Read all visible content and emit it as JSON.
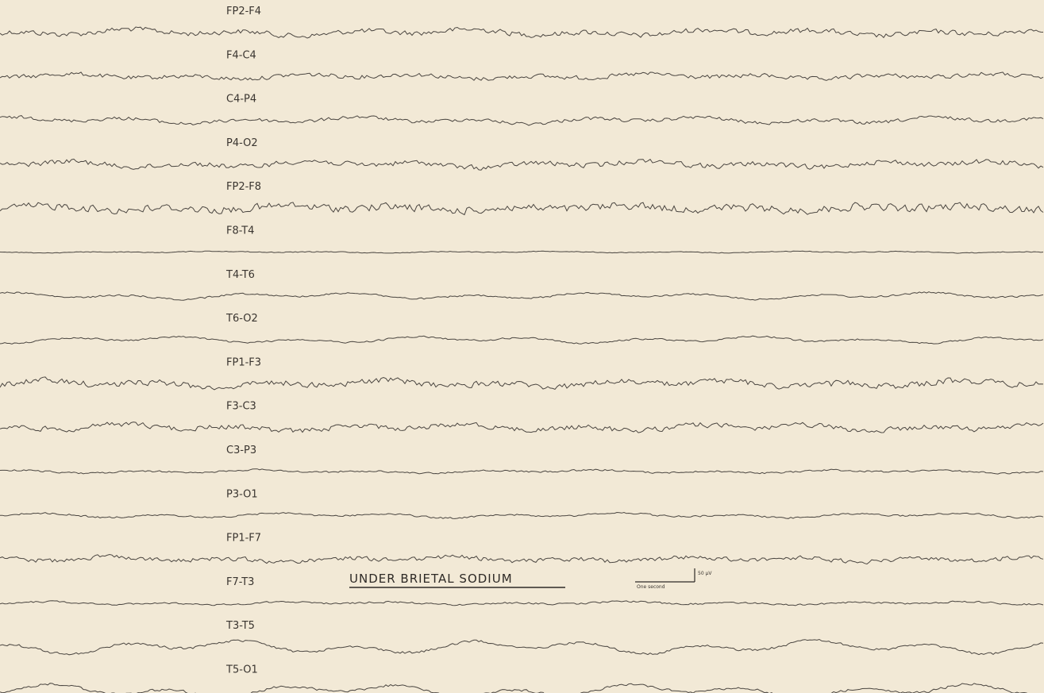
{
  "channels": [
    "FP2-F4",
    "F4-C4",
    "C4-P4",
    "P4-O2",
    "FP2-F8",
    "F8-T4",
    "T4-T6",
    "T6-O2",
    "FP1-F3",
    "F3-C3",
    "C3-P3",
    "P3-O1",
    "FP1-F7",
    "F7-T3",
    "T3-T5",
    "T5-O1"
  ],
  "title": "UNDER BRIETAL SODIUM",
  "scale": {
    "amplitude": "50 µV",
    "time": "One second"
  }
}
